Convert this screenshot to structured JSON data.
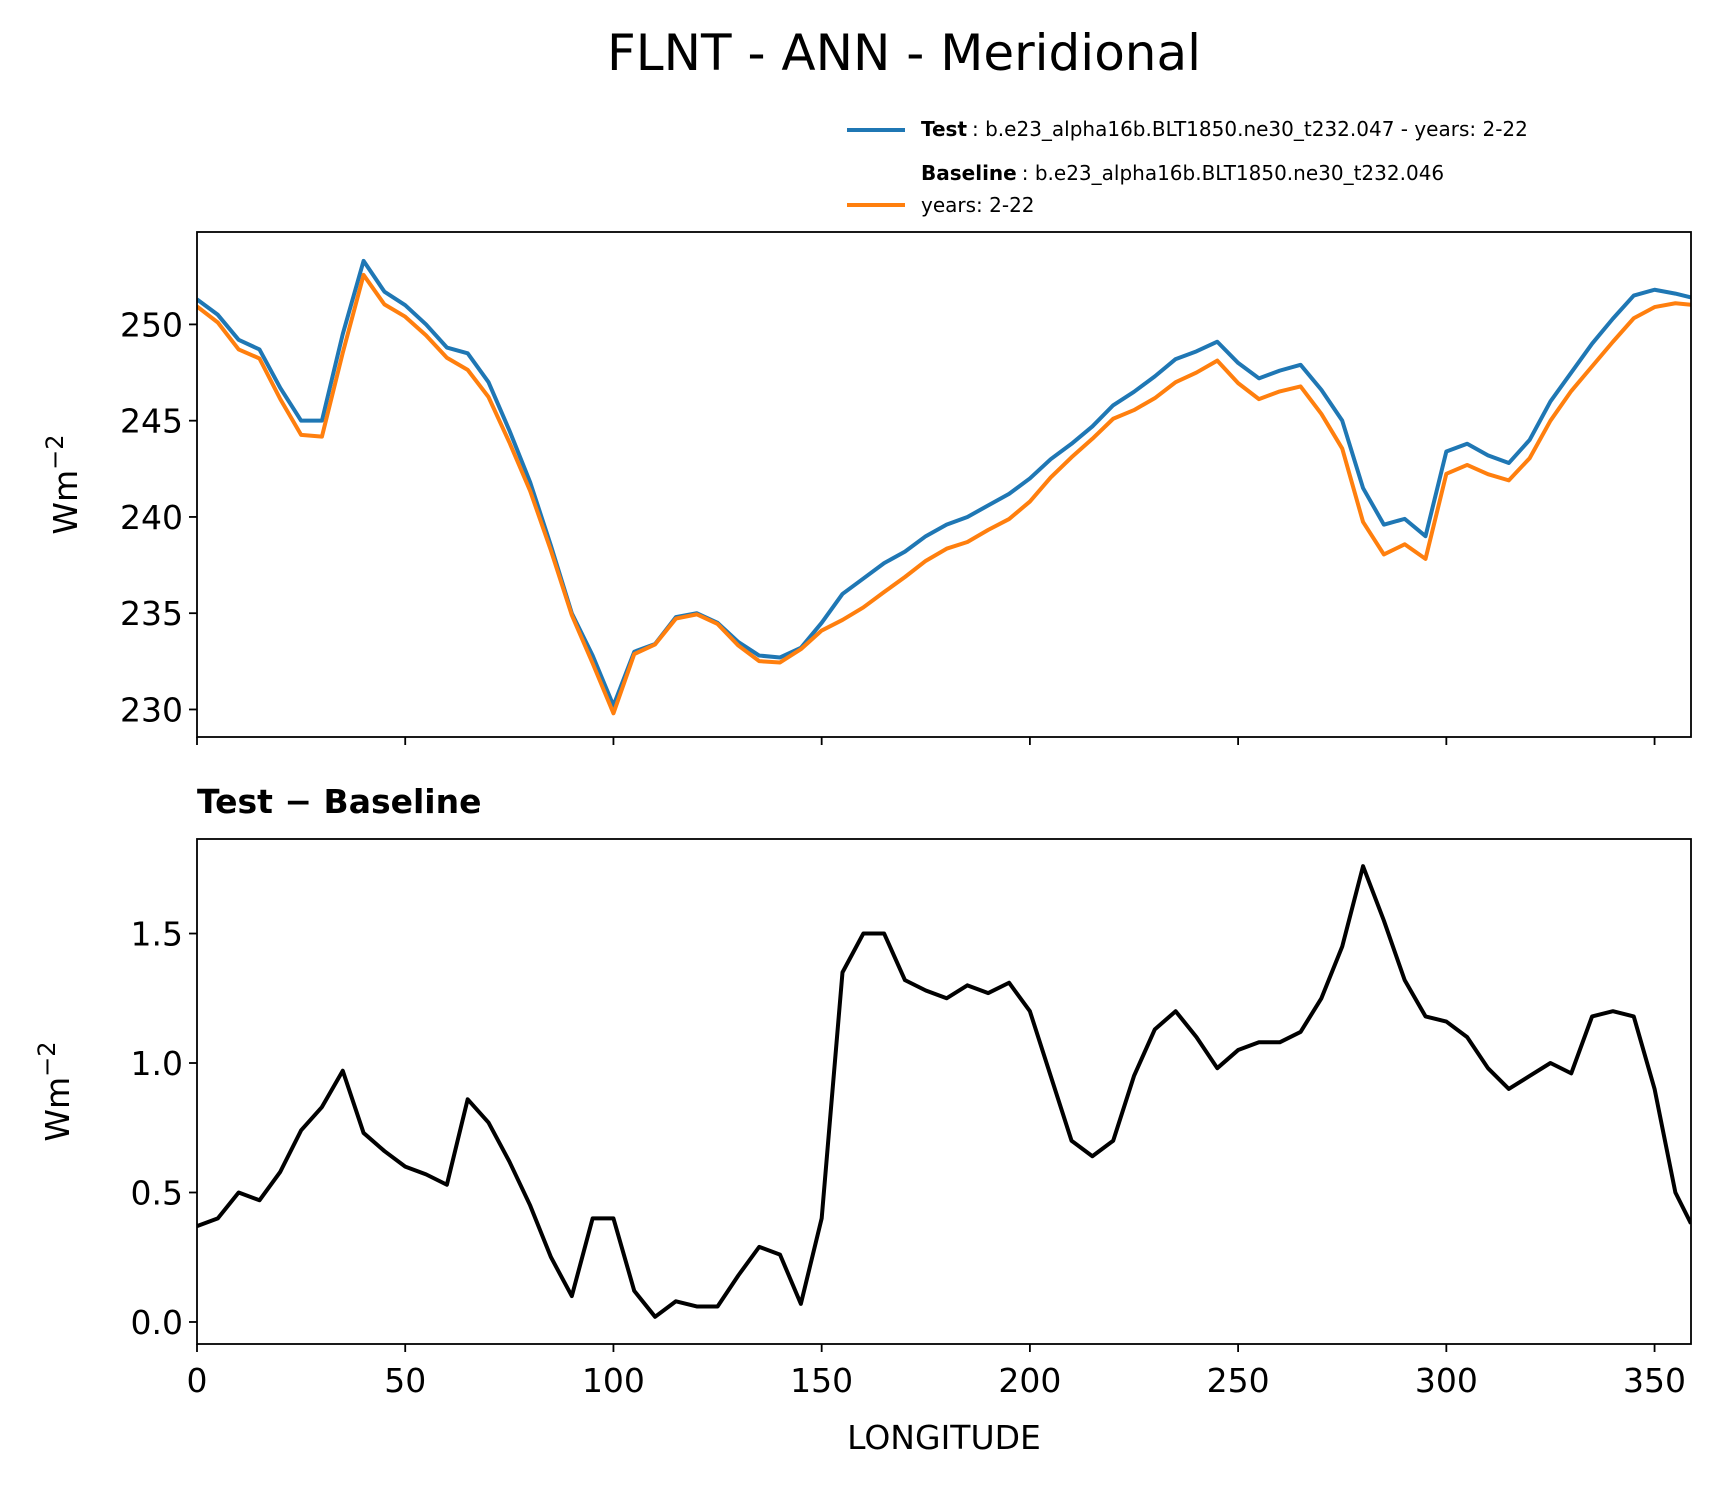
{
  "chart_data": [
    {
      "type": "line",
      "title": "FLNT - ANN - Meridional",
      "ylabel": {
        "base": "Wm",
        "exponent": "−2"
      },
      "x": [
        0,
        5,
        10,
        15,
        20,
        25,
        30,
        35,
        40,
        45,
        50,
        55,
        60,
        65,
        70,
        75,
        80,
        85,
        90,
        95,
        100,
        105,
        110,
        115,
        120,
        125,
        130,
        135,
        140,
        145,
        150,
        155,
        160,
        165,
        170,
        175,
        180,
        185,
        190,
        195,
        200,
        205,
        210,
        215,
        220,
        225,
        230,
        235,
        240,
        245,
        250,
        255,
        260,
        265,
        270,
        275,
        280,
        285,
        290,
        295,
        300,
        305,
        310,
        315,
        320,
        325,
        330,
        335,
        340,
        345,
        350,
        355,
        358.75
      ],
      "series": [
        {
          "name": "Test",
          "description": [
            ": b.e23_alpha16b.BLT1850.ne30_t232.047 - years: 2-22"
          ],
          "color": "#1f77b4",
          "values": [
            251.3,
            250.5,
            249.2,
            248.7,
            246.7,
            245.0,
            245.0,
            249.5,
            253.3,
            251.7,
            251.0,
            250.0,
            248.8,
            248.5,
            247.0,
            244.5,
            241.8,
            238.5,
            235.0,
            232.8,
            230.2,
            233.0,
            233.4,
            234.8,
            235.0,
            234.5,
            233.5,
            232.8,
            232.7,
            233.2,
            234.5,
            236.0,
            236.8,
            237.6,
            238.2,
            239.0,
            239.6,
            240.0,
            240.6,
            241.2,
            242.0,
            243.0,
            243.8,
            244.7,
            245.8,
            246.5,
            247.3,
            248.2,
            248.6,
            249.1,
            248.0,
            247.2,
            247.6,
            247.9,
            246.6,
            245.0,
            241.5,
            239.6,
            239.9,
            239.0,
            243.4,
            243.8,
            243.2,
            242.8,
            244.0,
            246.0,
            247.5,
            249.0,
            250.3,
            251.5,
            251.8,
            251.6,
            251.4
          ]
        },
        {
          "name": "Baseline",
          "description": [
            ": b.e23_alpha16b.BLT1850.ne30_t232.046",
            "years: 2-22"
          ],
          "color": "#ff7f0e",
          "values": [
            250.93,
            250.1,
            248.7,
            248.23,
            246.12,
            244.26,
            244.17,
            248.53,
            252.57,
            251.04,
            250.4,
            249.43,
            248.27,
            247.64,
            246.23,
            243.88,
            241.35,
            238.25,
            234.9,
            232.4,
            229.8,
            232.88,
            233.38,
            234.72,
            234.94,
            234.44,
            233.32,
            232.51,
            232.44,
            233.13,
            234.1,
            234.65,
            235.3,
            236.1,
            236.88,
            237.72,
            238.35,
            238.7,
            239.33,
            239.89,
            240.8,
            242.05,
            243.1,
            244.06,
            245.1,
            245.55,
            246.17,
            247.0,
            247.5,
            248.12,
            246.95,
            246.12,
            246.52,
            246.78,
            245.35,
            243.55,
            239.74,
            238.05,
            238.58,
            237.82,
            242.24,
            242.7,
            242.22,
            241.9,
            243.05,
            245.0,
            246.54,
            247.82,
            249.1,
            250.32,
            250.9,
            251.1,
            251.02
          ]
        }
      ],
      "xlim": [
        0,
        358.75
      ],
      "xticks": [
        0,
        50,
        100,
        150,
        200,
        250,
        300,
        350
      ],
      "ylim": [
        228.57,
        254.8
      ],
      "yticks": [
        230,
        235,
        240,
        245,
        250
      ],
      "grid": false,
      "legend": "above-right"
    },
    {
      "type": "line",
      "title": "Test − Baseline",
      "xlabel": "LONGITUDE",
      "ylabel": {
        "base": "Wm",
        "exponent": "−2"
      },
      "x": [
        0,
        5,
        10,
        15,
        20,
        25,
        30,
        35,
        40,
        45,
        50,
        55,
        60,
        65,
        70,
        75,
        80,
        85,
        90,
        95,
        100,
        105,
        110,
        115,
        120,
        125,
        130,
        135,
        140,
        145,
        150,
        155,
        160,
        165,
        170,
        175,
        180,
        185,
        190,
        195,
        200,
        205,
        210,
        215,
        220,
        225,
        230,
        235,
        240,
        245,
        250,
        255,
        260,
        265,
        270,
        275,
        280,
        285,
        290,
        295,
        300,
        305,
        310,
        315,
        320,
        325,
        330,
        335,
        340,
        345,
        350,
        355,
        358.75
      ],
      "series": [
        {
          "color": "#000000",
          "values": [
            0.37,
            0.4,
            0.5,
            0.47,
            0.58,
            0.74,
            0.83,
            0.97,
            0.73,
            0.66,
            0.6,
            0.57,
            0.53,
            0.86,
            0.77,
            0.62,
            0.45,
            0.25,
            0.1,
            0.4,
            0.4,
            0.12,
            0.02,
            0.08,
            0.06,
            0.06,
            0.18,
            0.29,
            0.26,
            0.07,
            0.4,
            1.35,
            1.5,
            1.5,
            1.32,
            1.28,
            1.25,
            1.3,
            1.27,
            1.31,
            1.2,
            0.95,
            0.7,
            0.64,
            0.7,
            0.95,
            1.13,
            1.2,
            1.1,
            0.98,
            1.05,
            1.08,
            1.08,
            1.12,
            1.25,
            1.45,
            1.76,
            1.55,
            1.32,
            1.18,
            1.16,
            1.1,
            0.98,
            0.9,
            0.95,
            1.0,
            0.96,
            1.18,
            1.2,
            1.18,
            0.9,
            0.5,
            0.38
          ]
        }
      ],
      "xlim": [
        0,
        358.75
      ],
      "xticks": [
        0,
        50,
        100,
        150,
        200,
        250,
        300,
        350
      ],
      "ylim": [
        -0.085,
        1.865
      ],
      "yticks": [
        {
          "value": 0,
          "label": "0.0"
        },
        0.5,
        {
          "value": 1,
          "label": "1.0"
        },
        1.5
      ],
      "grid": false
    }
  ]
}
